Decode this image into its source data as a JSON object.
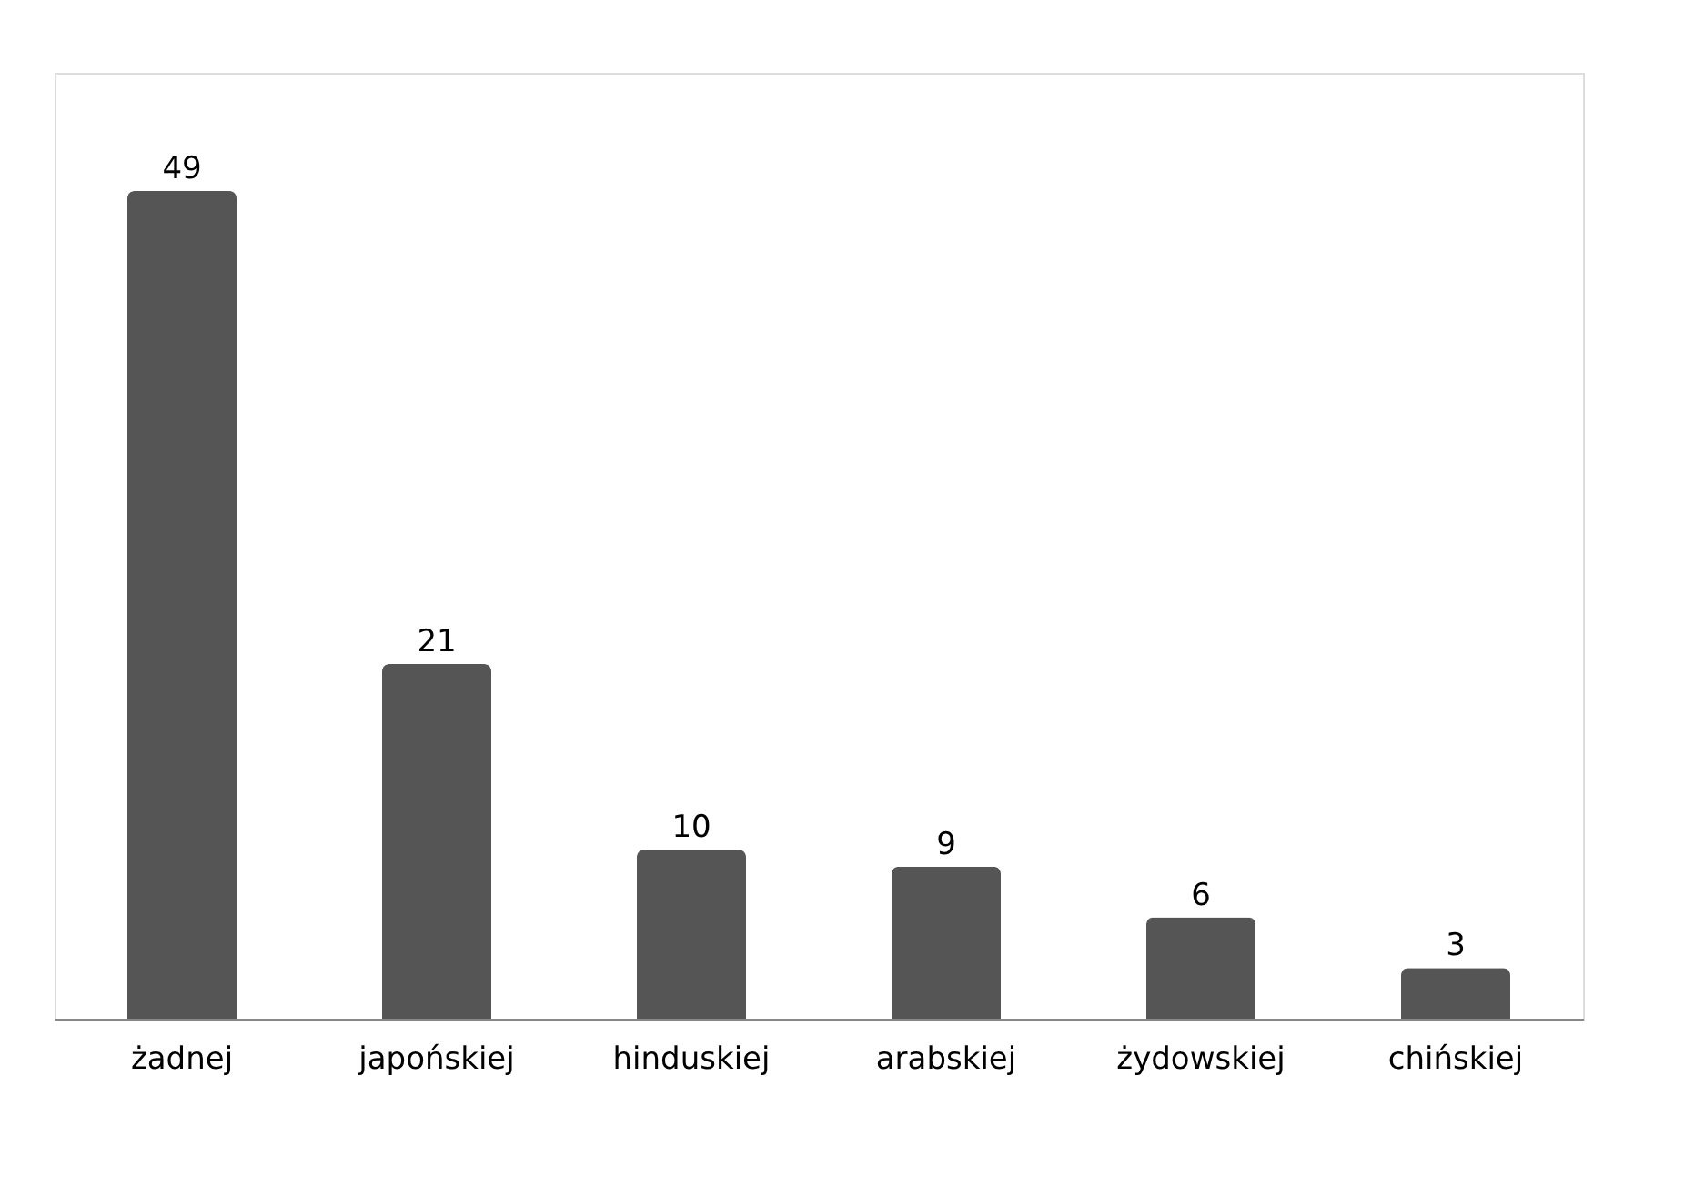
{
  "chart_data": {
    "type": "bar",
    "categories": [
      "żadnej",
      "japońskiej",
      "hinduskiej",
      "arabskiej",
      "żydowskiej",
      "chińskiej"
    ],
    "values": [
      49,
      21,
      10,
      9,
      6,
      3
    ],
    "color": "#555555",
    "data_labels": true,
    "ylim": [
      0,
      56
    ]
  }
}
